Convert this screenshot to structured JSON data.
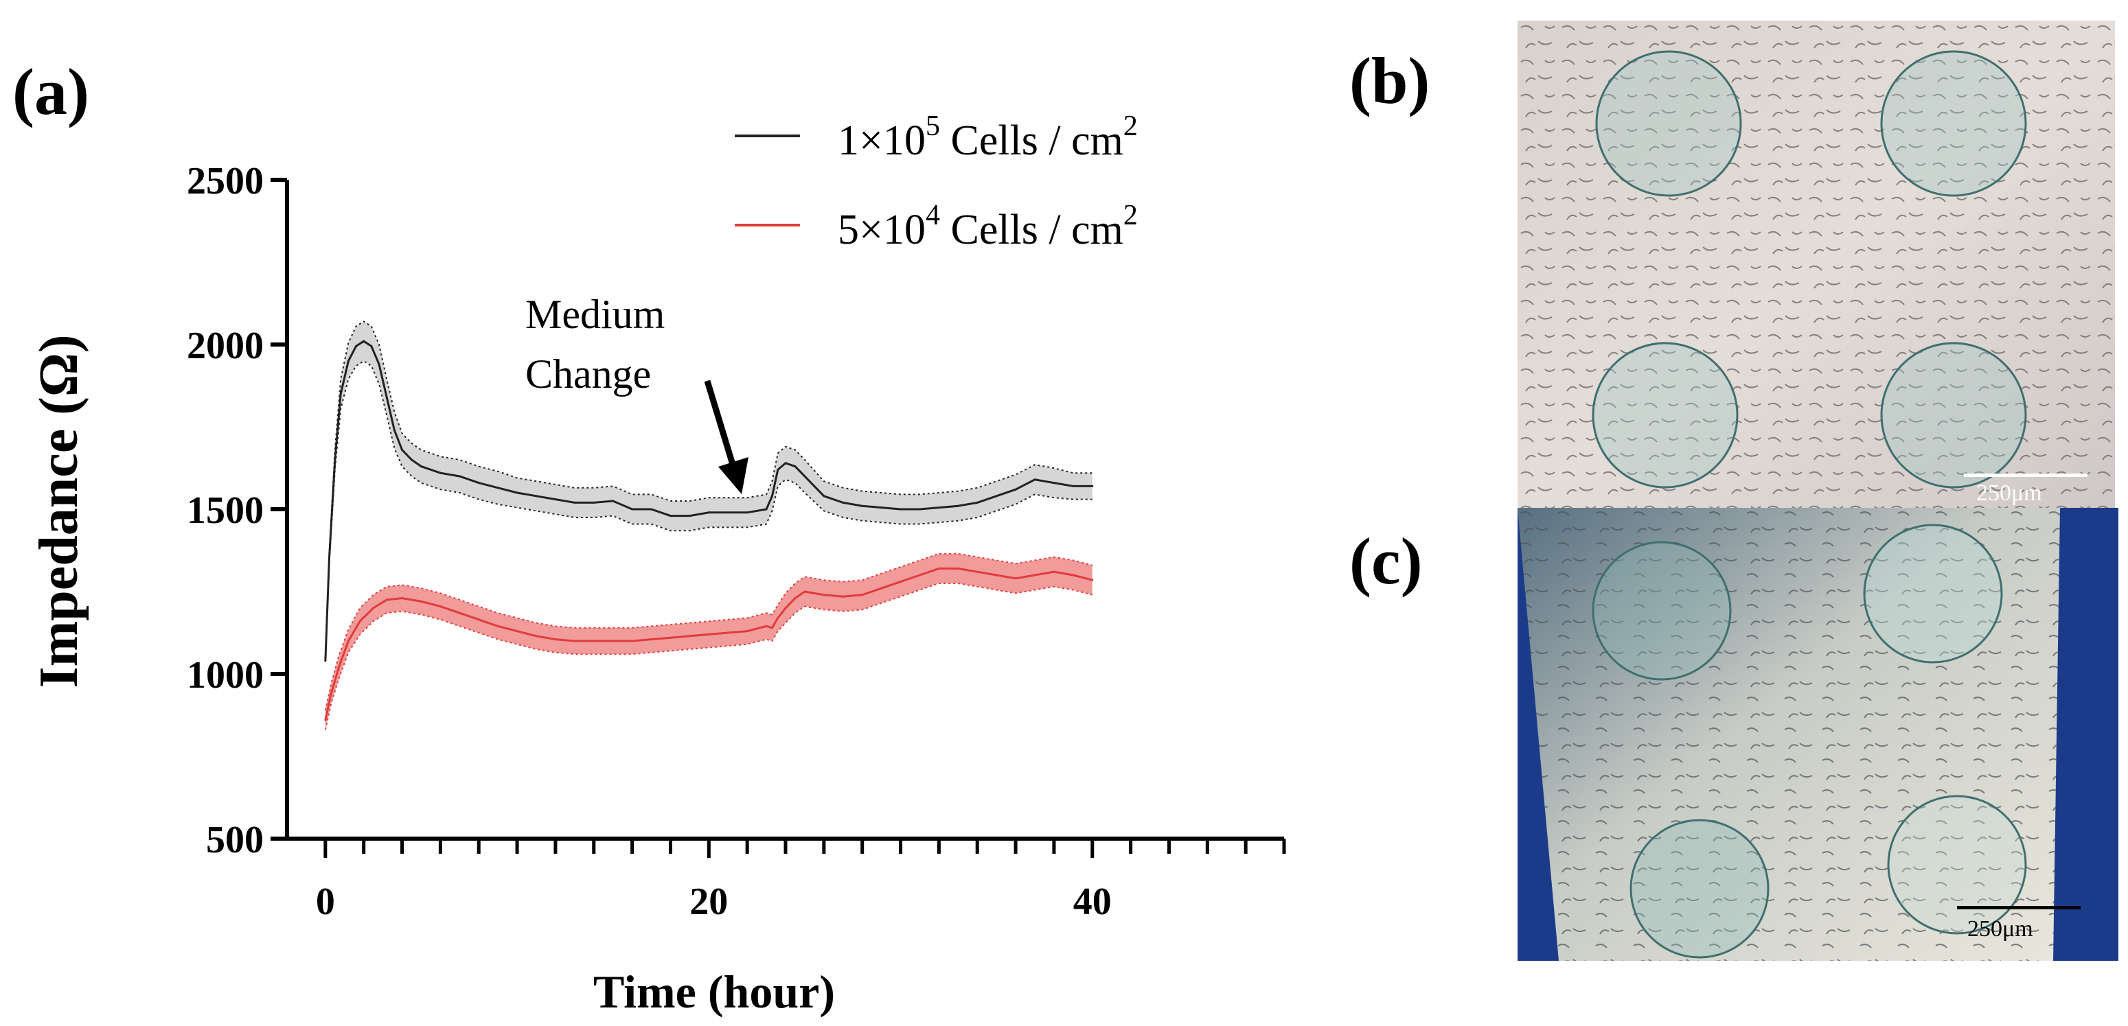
{
  "panels": {
    "a": "(a)",
    "b": "(b)",
    "c": "(c)"
  },
  "chart_data": {
    "type": "line",
    "title": "",
    "xlabel": "Time (hour)",
    "ylabel": "Impedance (Ω)",
    "xlim": [
      -2,
      50
    ],
    "ylim": [
      500,
      2500
    ],
    "xticks": [
      0,
      20,
      40
    ],
    "yticks": [
      500,
      1000,
      1500,
      2000,
      2500
    ],
    "x_minor_step": 2,
    "legend_position": "top-right",
    "annotation": {
      "text_line1": "Medium",
      "text_line2": "Change",
      "x": 21,
      "y": 1480
    },
    "series": [
      {
        "name": "1×10^5 Cells / cm^2",
        "legend_base": "1×10",
        "legend_exp": "5",
        "legend_unit": " Cells / cm",
        "legend_unit_exp": "2",
        "color": "#222222",
        "band_color": "#cfcfcf",
        "x": [
          0,
          0.2,
          0.5,
          0.8,
          1.2,
          1.6,
          2.0,
          2.4,
          2.8,
          3.2,
          3.6,
          4.0,
          4.5,
          5.0,
          6.0,
          7.0,
          8.0,
          9.0,
          10.0,
          11.0,
          12.0,
          13.0,
          14.0,
          15.0,
          16.0,
          17.0,
          18.0,
          19.0,
          20.0,
          21.0,
          22.0,
          23.0,
          23.3,
          23.6,
          24.0,
          24.5,
          25.0,
          26.0,
          27.0,
          28.0,
          29.0,
          30.0,
          31.0,
          32.0,
          33.0,
          34.0,
          35.0,
          36.0,
          37.0,
          38.0,
          39.0,
          40.0
        ],
        "values": [
          1040,
          1350,
          1650,
          1850,
          1950,
          1995,
          2010,
          1995,
          1940,
          1840,
          1740,
          1680,
          1650,
          1630,
          1610,
          1600,
          1580,
          1565,
          1550,
          1540,
          1530,
          1520,
          1520,
          1525,
          1500,
          1500,
          1480,
          1480,
          1490,
          1490,
          1490,
          1500,
          1540,
          1620,
          1640,
          1630,
          1600,
          1540,
          1520,
          1510,
          1505,
          1500,
          1500,
          1505,
          1510,
          1520,
          1540,
          1560,
          1590,
          1580,
          1570,
          1570
        ],
        "band": [
          0,
          15,
          30,
          45,
          55,
          60,
          60,
          60,
          60,
          55,
          55,
          50,
          50,
          50,
          50,
          50,
          50,
          50,
          45,
          45,
          45,
          45,
          45,
          45,
          45,
          45,
          45,
          45,
          45,
          45,
          45,
          45,
          45,
          50,
          50,
          50,
          50,
          45,
          45,
          45,
          45,
          45,
          45,
          45,
          45,
          45,
          45,
          45,
          45,
          45,
          40,
          40
        ]
      },
      {
        "name": "5×10^4 Cells / cm^2",
        "legend_base": "5×10",
        "legend_exp": "4",
        "legend_unit": " Cells / cm",
        "legend_unit_exp": "2",
        "color": "#e03c3c",
        "band_color": "#f08a8a",
        "x": [
          0,
          0.3,
          0.7,
          1.2,
          1.8,
          2.5,
          3.2,
          4.0,
          5.0,
          6.0,
          7.0,
          8.0,
          9.0,
          10.0,
          11.0,
          12.0,
          13.0,
          14.0,
          15.0,
          16.0,
          17.0,
          18.0,
          19.0,
          20.0,
          21.0,
          22.0,
          23.0,
          23.3,
          23.6,
          24.0,
          24.5,
          25.0,
          26.0,
          27.0,
          28.0,
          29.0,
          30.0,
          31.0,
          32.0,
          33.0,
          34.0,
          35.0,
          36.0,
          37.0,
          38.0,
          39.0,
          40.0
        ],
        "values": [
          860,
          940,
          1020,
          1100,
          1160,
          1200,
          1225,
          1230,
          1220,
          1205,
          1185,
          1165,
          1145,
          1130,
          1115,
          1105,
          1100,
          1100,
          1100,
          1100,
          1105,
          1110,
          1115,
          1120,
          1125,
          1130,
          1145,
          1140,
          1170,
          1200,
          1230,
          1250,
          1240,
          1235,
          1240,
          1260,
          1280,
          1300,
          1320,
          1320,
          1310,
          1300,
          1290,
          1300,
          1310,
          1300,
          1285
        ],
        "band": [
          30,
          30,
          35,
          35,
          40,
          40,
          40,
          40,
          40,
          40,
          40,
          40,
          40,
          40,
          40,
          40,
          40,
          40,
          40,
          40,
          40,
          40,
          40,
          40,
          40,
          40,
          40,
          40,
          40,
          45,
          45,
          45,
          45,
          45,
          45,
          45,
          45,
          45,
          45,
          45,
          45,
          45,
          45,
          45,
          45,
          45,
          45
        ]
      }
    ]
  },
  "micrographs": {
    "b": {
      "scale_label": "250μm"
    },
    "c": {
      "scale_label": "250μm"
    }
  }
}
